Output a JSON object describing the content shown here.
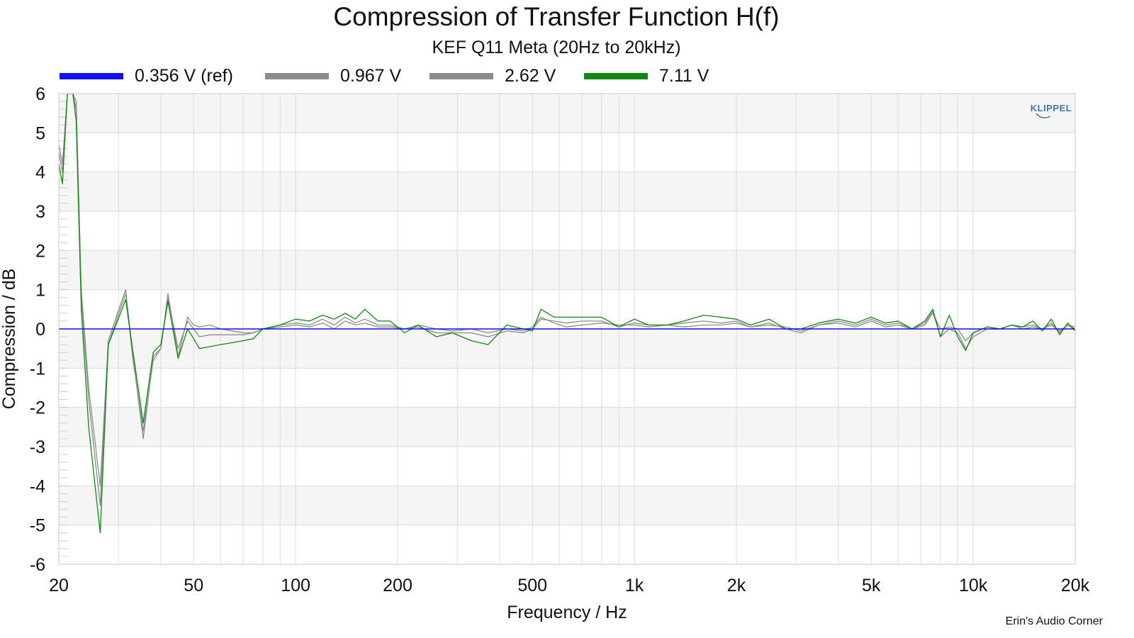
{
  "chart_data": {
    "type": "line",
    "title": "Compression of Transfer Function H(f)",
    "subtitle": "KEF Q11 Meta (20Hz to 20kHz)",
    "xlabel": "Frequency / Hz",
    "ylabel": "Compression / dB",
    "xscale": "log",
    "xlim": [
      20,
      20000
    ],
    "ylim": [
      -6,
      6
    ],
    "xticks": [
      20,
      50,
      100,
      200,
      500,
      1000,
      2000,
      5000,
      10000,
      20000
    ],
    "xtick_labels": [
      "20",
      "50",
      "100",
      "200",
      "500",
      "1k",
      "2k",
      "5k",
      "10k",
      "20k"
    ],
    "yticks": [
      -6,
      -5,
      -4,
      -3,
      -2,
      -1,
      0,
      1,
      2,
      3,
      4,
      5,
      6
    ],
    "ytick_labels": [
      "-6",
      "-5",
      "-4",
      "-3",
      "-2",
      "-1",
      "0",
      "1",
      "2",
      "3",
      "4",
      "5",
      "6"
    ],
    "grid": true,
    "legend_position": "top",
    "series": [
      {
        "name": "0.356 V (ref)",
        "color": "#1010ee",
        "x": [
          20,
          20000
        ],
        "y": [
          0,
          0
        ]
      },
      {
        "name": "0.967 V",
        "color": "#8c8c8c",
        "x": [
          20,
          20.5,
          21.2,
          22,
          22.5,
          23.3,
          24.5,
          26.5,
          28,
          29.8,
          31.5,
          33,
          35.5,
          38,
          40,
          42,
          45,
          48,
          50,
          52,
          56,
          60,
          65,
          70,
          75,
          80,
          90,
          100,
          110,
          120,
          130,
          140,
          150,
          160,
          175,
          190,
          210,
          230,
          260,
          290,
          330,
          370,
          420,
          470,
          500,
          530,
          580,
          630,
          700,
          800,
          900,
          1000,
          1100,
          1250,
          1400,
          1600,
          1800,
          2000,
          2200,
          2500,
          2800,
          3100,
          3500,
          4000,
          4500,
          5000,
          5500,
          6000,
          6600,
          7200,
          7600,
          8000,
          8500,
          9000,
          9500,
          10000,
          11000,
          12000,
          13000,
          14000,
          15000,
          16000,
          17000,
          18000,
          19000,
          20000
        ],
        "y": [
          4.7,
          4.2,
          6.0,
          6.0,
          5.8,
          1.0,
          -1.5,
          -4.0,
          -0.3,
          0.4,
          1.0,
          -0.6,
          -2.8,
          -0.7,
          -0.5,
          0.9,
          -0.7,
          0.3,
          0.1,
          0.05,
          0.1,
          0.0,
          -0.05,
          -0.1,
          -0.1,
          0.0,
          0.05,
          0.1,
          0.05,
          0.15,
          0.0,
          0.2,
          0.1,
          0.15,
          0.05,
          0.05,
          0.0,
          0.1,
          0.0,
          -0.05,
          0.0,
          -0.1,
          0.0,
          -0.05,
          0.05,
          0.3,
          0.15,
          0.05,
          0.1,
          0.15,
          0.1,
          0.1,
          0.05,
          0.1,
          0.05,
          0.1,
          0.1,
          0.15,
          0.05,
          0.1,
          0.05,
          -0.05,
          0.1,
          0.15,
          0.05,
          0.2,
          0.05,
          0.1,
          0.0,
          0.1,
          0.4,
          0.0,
          0.05,
          0.0,
          -0.3,
          -0.1,
          0.05,
          0.0,
          0.1,
          0.0,
          0.05,
          0.0,
          0.1,
          -0.05,
          0.1,
          0.05
        ]
      },
      {
        "name": "2.62 V",
        "color": "#8c8c8c",
        "x": [
          20,
          20.5,
          21.2,
          22,
          22.5,
          23.3,
          24.5,
          26.5,
          28,
          29.8,
          31.5,
          33,
          35.5,
          38,
          40,
          42,
          45,
          48,
          50,
          52,
          56,
          60,
          65,
          70,
          75,
          80,
          90,
          100,
          110,
          120,
          130,
          140,
          150,
          160,
          175,
          190,
          210,
          230,
          260,
          290,
          330,
          370,
          420,
          470,
          500,
          530,
          580,
          630,
          700,
          800,
          900,
          1000,
          1100,
          1250,
          1400,
          1600,
          1800,
          2000,
          2200,
          2500,
          2800,
          3100,
          3500,
          4000,
          4500,
          5000,
          5500,
          6000,
          6600,
          7200,
          7600,
          8000,
          8500,
          9000,
          9500,
          10000,
          11000,
          12000,
          13000,
          14000,
          15000,
          16000,
          17000,
          18000,
          19000,
          20000
        ],
        "y": [
          4.5,
          4.0,
          6.0,
          6.0,
          5.6,
          0.8,
          -1.8,
          -4.5,
          -0.4,
          0.3,
          0.9,
          -0.7,
          -2.6,
          -0.8,
          -0.5,
          0.8,
          -0.5,
          0.2,
          0.0,
          -0.2,
          -0.15,
          -0.15,
          -0.15,
          -0.15,
          -0.1,
          0.0,
          0.1,
          0.15,
          0.1,
          0.25,
          0.1,
          0.3,
          0.15,
          0.25,
          0.1,
          0.1,
          0.0,
          0.05,
          -0.1,
          -0.1,
          -0.1,
          -0.2,
          -0.05,
          -0.1,
          0.0,
          0.25,
          0.2,
          0.15,
          0.2,
          0.2,
          0.05,
          0.15,
          0.1,
          0.1,
          0.15,
          0.2,
          0.15,
          0.2,
          0.05,
          0.15,
          0.0,
          -0.1,
          0.1,
          0.2,
          0.1,
          0.25,
          0.1,
          0.15,
          0.0,
          0.15,
          0.45,
          -0.2,
          0.0,
          -0.1,
          -0.5,
          -0.2,
          0.0,
          0.0,
          0.1,
          0.05,
          0.1,
          0.0,
          0.15,
          -0.1,
          0.1,
          0.0
        ]
      },
      {
        "name": "7.11 V",
        "color": "#118811",
        "x": [
          20,
          20.5,
          21.2,
          22,
          22.5,
          23.3,
          24.5,
          26.5,
          28,
          29.8,
          31.5,
          33,
          35.5,
          38,
          40,
          42,
          45,
          48,
          50,
          52,
          56,
          60,
          65,
          70,
          75,
          80,
          90,
          100,
          110,
          120,
          130,
          140,
          150,
          160,
          175,
          190,
          210,
          230,
          260,
          290,
          330,
          370,
          420,
          470,
          500,
          530,
          580,
          630,
          700,
          800,
          900,
          1000,
          1100,
          1250,
          1400,
          1600,
          1800,
          2000,
          2200,
          2500,
          2800,
          3100,
          3500,
          4000,
          4500,
          5000,
          5500,
          6000,
          6600,
          7200,
          7600,
          8000,
          8500,
          9000,
          9500,
          10000,
          11000,
          12000,
          13000,
          14000,
          15000,
          16000,
          17000,
          18000,
          19000,
          20000
        ],
        "y": [
          4.2,
          3.7,
          6.0,
          6.0,
          5.3,
          0.5,
          -2.5,
          -5.2,
          -0.4,
          0.2,
          0.75,
          -0.5,
          -2.4,
          -0.6,
          -0.4,
          0.7,
          -0.75,
          0.0,
          -0.25,
          -0.5,
          -0.45,
          -0.4,
          -0.35,
          -0.3,
          -0.25,
          0.0,
          0.1,
          0.25,
          0.2,
          0.35,
          0.25,
          0.4,
          0.25,
          0.5,
          0.2,
          0.2,
          -0.1,
          0.1,
          -0.2,
          -0.1,
          -0.3,
          -0.4,
          0.1,
          0.0,
          -0.05,
          0.5,
          0.3,
          0.3,
          0.3,
          0.3,
          0.05,
          0.25,
          0.1,
          0.1,
          0.2,
          0.35,
          0.3,
          0.25,
          0.1,
          0.25,
          0.0,
          0.0,
          0.15,
          0.25,
          0.15,
          0.3,
          0.15,
          0.2,
          0.0,
          0.2,
          0.5,
          -0.2,
          0.35,
          -0.2,
          -0.55,
          -0.1,
          0.05,
          0.0,
          0.1,
          0.05,
          0.2,
          -0.05,
          0.25,
          -0.15,
          0.15,
          -0.05
        ]
      }
    ]
  },
  "logo_text": "KLIPPEL",
  "watermark": "Erin's Audio Corner"
}
